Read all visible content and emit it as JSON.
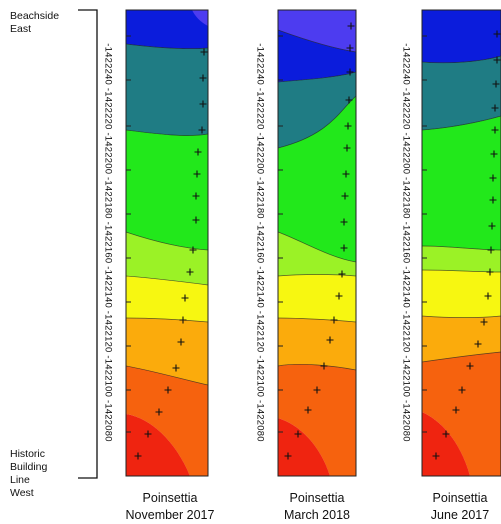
{
  "end_labels": {
    "top": "Beachside\nEast",
    "bottom": "Historic\nBuilding\nLine\nWest"
  },
  "axis_label": "-1422240 -1422220 -1422200 -1422180 -1422160 -1422140 -1422120 -1422100 -1422080",
  "panels": [
    {
      "site": "Poinsettia",
      "date": "November 2017"
    },
    {
      "site": "Poinsettia",
      "date": "March 2018"
    },
    {
      "site": "Poinsettia",
      "date": "June 2017"
    }
  ],
  "colors": {
    "band_1": "#4d3cf0",
    "band_2": "#0b1cdc",
    "band_3": "#1f7c84",
    "band_4": "#22e81b",
    "band_5": "#9bf226",
    "band_6": "#f7f711",
    "band_7": "#fbab0c",
    "band_8": "#f6620e",
    "band_9": "#ef2410",
    "marker": "#111111"
  }
}
